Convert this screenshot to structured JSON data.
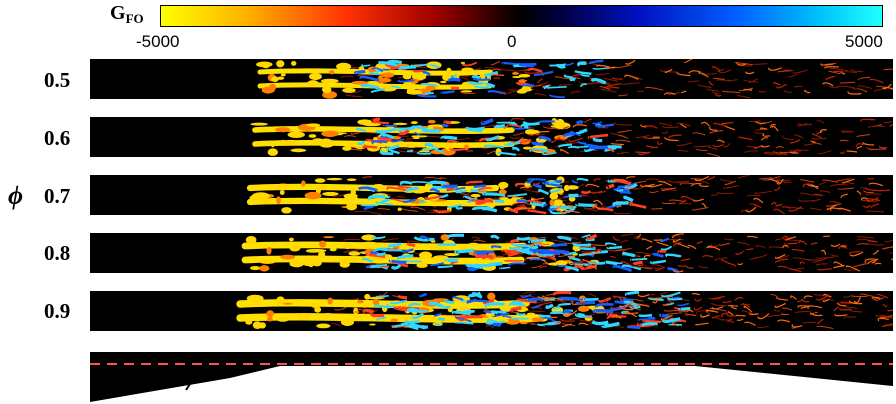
{
  "colorbar": {
    "label_main": "G",
    "label_sub": "FO",
    "ticks": [
      "-5000",
      "0",
      "5000"
    ],
    "colors": {
      "neg_high": "#ffff00",
      "neg_mid": "#ff3000",
      "zero": "#000000",
      "pos_mid": "#0060ff",
      "pos_high": "#20ffff"
    }
  },
  "axis_symbol": "ϕ",
  "rows": [
    {
      "label": "0.5"
    },
    {
      "label": "0.6"
    },
    {
      "label": "0.7"
    },
    {
      "label": "0.8"
    },
    {
      "label": "0.9"
    }
  ]
}
